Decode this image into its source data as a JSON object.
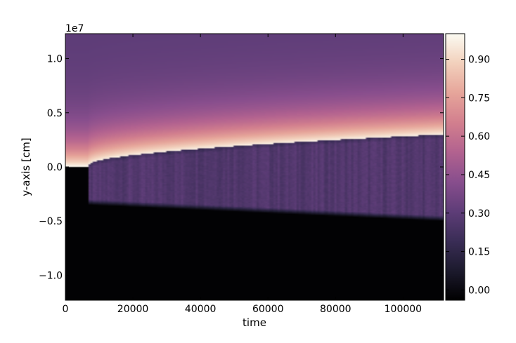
{
  "chart_data": {
    "type": "heatmap",
    "title": "",
    "xlabel": "time",
    "ylabel": "y-axis [cm]",
    "y_offset_label": "1e7",
    "xlim": [
      0,
      112000
    ],
    "ylim": [
      -12300000,
      12300000
    ],
    "x_ticks": [
      0,
      20000,
      40000,
      60000,
      80000,
      100000
    ],
    "x_tick_labels": [
      "0",
      "20000",
      "40000",
      "60000",
      "80000",
      "100000"
    ],
    "y_ticks": [
      10000000,
      5000000,
      0,
      -5000000,
      -10000000
    ],
    "y_tick_labels": [
      "1.0",
      "0.5",
      "0.0",
      "−0.5",
      "−1.0"
    ],
    "colorbar": {
      "min": -0.04,
      "max": 1.0,
      "ticks": [
        0.9,
        0.75,
        0.6,
        0.45,
        0.3,
        0.15,
        0.0
      ],
      "tick_labels": [
        "0.90",
        "0.75",
        "0.60",
        "0.45",
        "0.30",
        "0.15",
        "0.00"
      ],
      "colors": [
        "#000000",
        "#1c1a2d",
        "#3a2d56",
        "#5e3d78",
        "#884e8d",
        "#b2628f",
        "#d27f8e",
        "#e6a59a",
        "#f2d0bc",
        "#fbfbf2"
      ]
    },
    "features": {
      "upper_decay_scale_y": 2500000,
      "front_start_x": 7000,
      "front_base_y": 200000,
      "front_end_y": 3000000,
      "lower_edge_start_y": -3500000,
      "lower_edge_end_y": -5000000,
      "band_value": 0.27
    }
  }
}
